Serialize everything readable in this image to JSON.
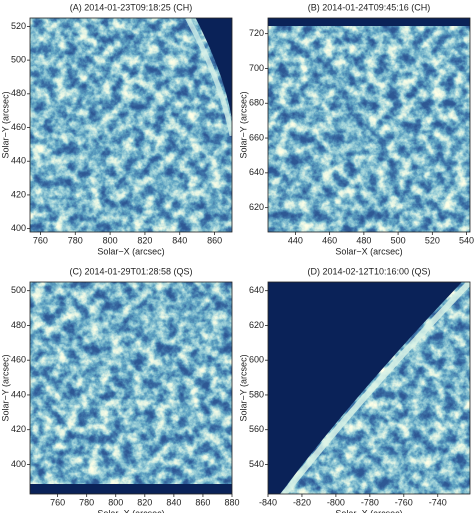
{
  "chart_data": [
    {
      "type": "image",
      "title": "(A) 2014‑01‑23T09:18:25 (CH)",
      "x_label": "Solar−X (arcsec)",
      "y_label": "Solar−Y (arcsec)",
      "xlim": [
        754,
        870
      ],
      "ylim": [
        398,
        525
      ],
      "xticks": [
        760,
        780,
        800,
        820,
        840,
        860
      ],
      "yticks": [
        400,
        420,
        440,
        460,
        480,
        500,
        520
      ]
    },
    {
      "type": "image",
      "title": "(B) 2014‑01‑24T09:45:16 (CH)",
      "x_label": "Solar−X (arcsec)",
      "y_label": "Solar−Y (arcsec)",
      "xlim": [
        424,
        542
      ],
      "ylim": [
        606,
        729
      ],
      "xticks": [
        440,
        460,
        480,
        500,
        520,
        540
      ],
      "yticks": [
        620,
        640,
        660,
        680,
        700,
        720
      ]
    },
    {
      "type": "image",
      "title": "(C) 2014‑01‑29T01:28:58 (QS)",
      "x_label": "Solar−X (arcsec)",
      "y_label": "Solar−Y (arcsec)",
      "xlim": [
        741,
        880
      ],
      "ylim": [
        383,
        505
      ],
      "xticks": [
        760,
        780,
        800,
        820,
        840,
        860,
        880
      ],
      "yticks": [
        400,
        420,
        440,
        460,
        480,
        500
      ]
    },
    {
      "type": "image",
      "title": "(D) 2014‑02‑12T10:16:00 (QS)",
      "x_label": "Solar−X (arcsec)",
      "y_label": "Solar−Y (arcsec)",
      "xlim": [
        -840,
        -721
      ],
      "ylim": [
        523,
        645
      ],
      "xticks": [
        -840,
        -820,
        -800,
        -780,
        -760,
        -740
      ],
      "yticks": [
        540,
        560,
        580,
        600,
        620,
        640
      ]
    }
  ]
}
